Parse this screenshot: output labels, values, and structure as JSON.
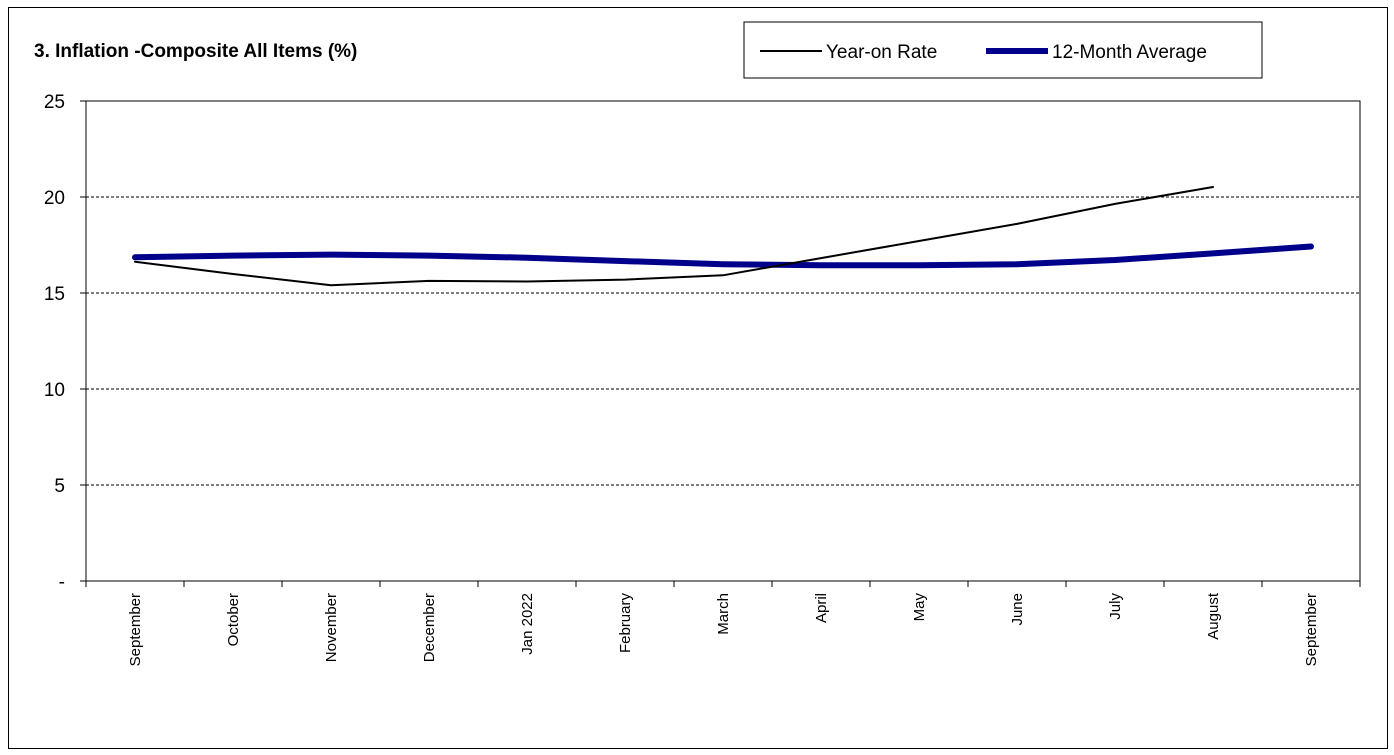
{
  "chart_data": {
    "type": "line",
    "title": "3. Inflation -Composite All Items (%)",
    "categories": [
      "September",
      "October",
      "November",
      "December",
      "Jan 2022",
      "February",
      "March",
      "April",
      "May",
      "June",
      "July",
      "August",
      "September"
    ],
    "y_tick_labels": [
      "-",
      "5",
      "10",
      "15",
      "20",
      "25"
    ],
    "ylim": [
      0,
      25
    ],
    "grid": "horizontal dashed",
    "legend_position": "top-right",
    "series": [
      {
        "name": "Year-on Rate",
        "color": "#000000",
        "values": [
          16.63,
          15.99,
          15.4,
          15.63,
          15.6,
          15.7,
          15.92,
          16.82,
          17.71,
          18.6,
          19.64,
          20.52,
          null
        ]
      },
      {
        "name": "12-Month Average",
        "color": "#00008b",
        "values": [
          16.86,
          16.95,
          17.0,
          16.95,
          16.84,
          16.66,
          16.5,
          16.45,
          16.45,
          16.5,
          16.72,
          17.06,
          17.42
        ]
      }
    ]
  }
}
